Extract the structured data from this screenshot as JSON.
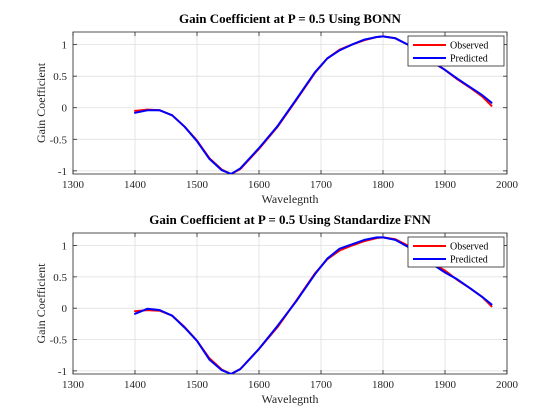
{
  "chart_data": [
    {
      "type": "line",
      "title": "Gain Coefficient at P = 0.5 Using BONN",
      "xlabel": "Wavelegnth",
      "ylabel": "Gain Coefficient",
      "xlim": [
        1300,
        2000
      ],
      "ylim": [
        -1.05,
        1.2
      ],
      "xticks": [
        1300,
        1400,
        1500,
        1600,
        1700,
        1800,
        1900,
        2000
      ],
      "yticks": [
        -1,
        -0.5,
        0,
        0.5,
        1
      ],
      "xtick_labels": [
        "1300",
        "1400",
        "1500",
        "1600",
        "1700",
        "1800",
        "1900",
        "2000"
      ],
      "ytick_labels": [
        "-1",
        "-0.5",
        "0",
        "0.5",
        "1"
      ],
      "grid": true,
      "legend_position": "top-right",
      "series": [
        {
          "name": "Observed",
          "color": "#ff0000",
          "x": [
            1400,
            1420,
            1440,
            1460,
            1480,
            1500,
            1520,
            1540,
            1555,
            1570,
            1600,
            1630,
            1660,
            1690,
            1710,
            1730,
            1750,
            1770,
            1790,
            1800,
            1820,
            1840,
            1860,
            1880,
            1900,
            1920,
            1940,
            1960,
            1975
          ],
          "y": [
            -0.05,
            -0.03,
            -0.04,
            -0.12,
            -0.3,
            -0.52,
            -0.8,
            -0.98,
            -1.05,
            -0.97,
            -0.65,
            -0.3,
            0.12,
            0.55,
            0.78,
            0.92,
            1.0,
            1.07,
            1.12,
            1.13,
            1.1,
            1.0,
            0.85,
            0.72,
            0.6,
            0.45,
            0.32,
            0.18,
            0.03
          ]
        },
        {
          "name": "Predicted",
          "color": "#0000ff",
          "x": [
            1400,
            1420,
            1440,
            1460,
            1480,
            1500,
            1520,
            1540,
            1555,
            1570,
            1600,
            1630,
            1660,
            1690,
            1710,
            1730,
            1750,
            1770,
            1790,
            1800,
            1820,
            1840,
            1860,
            1880,
            1900,
            1920,
            1940,
            1960,
            1975
          ],
          "y": [
            -0.08,
            -0.04,
            -0.04,
            -0.12,
            -0.3,
            -0.53,
            -0.81,
            -0.99,
            -1.05,
            -0.96,
            -0.64,
            -0.29,
            0.13,
            0.56,
            0.78,
            0.91,
            1.0,
            1.08,
            1.12,
            1.13,
            1.1,
            1.0,
            0.86,
            0.73,
            0.6,
            0.46,
            0.33,
            0.2,
            0.08
          ]
        }
      ]
    },
    {
      "type": "line",
      "title": "Gain Coefficient at P = 0.5 Using Standardize FNN",
      "xlabel": "Wavelegnth",
      "ylabel": "Gain Coefficient",
      "xlim": [
        1300,
        2000
      ],
      "ylim": [
        -1.05,
        1.2
      ],
      "xticks": [
        1300,
        1400,
        1500,
        1600,
        1700,
        1800,
        1900,
        2000
      ],
      "yticks": [
        -1,
        -0.5,
        0,
        0.5,
        1
      ],
      "xtick_labels": [
        "1300",
        "1400",
        "1500",
        "1600",
        "1700",
        "1800",
        "1900",
        "2000"
      ],
      "ytick_labels": [
        "-1",
        "-0.5",
        "0",
        "0.5",
        "1"
      ],
      "grid": true,
      "legend_position": "top-right",
      "series": [
        {
          "name": "Observed",
          "color": "#ff0000",
          "x": [
            1400,
            1420,
            1440,
            1460,
            1480,
            1500,
            1520,
            1540,
            1555,
            1570,
            1600,
            1630,
            1660,
            1690,
            1710,
            1730,
            1750,
            1770,
            1790,
            1800,
            1820,
            1840,
            1860,
            1880,
            1900,
            1920,
            1940,
            1960,
            1975
          ],
          "y": [
            -0.05,
            -0.03,
            -0.04,
            -0.12,
            -0.3,
            -0.52,
            -0.8,
            -0.98,
            -1.05,
            -0.97,
            -0.65,
            -0.3,
            0.12,
            0.55,
            0.78,
            0.92,
            1.0,
            1.07,
            1.12,
            1.13,
            1.1,
            1.0,
            0.85,
            0.72,
            0.6,
            0.45,
            0.32,
            0.18,
            0.03
          ]
        },
        {
          "name": "Predicted",
          "color": "#0000ff",
          "x": [
            1400,
            1420,
            1440,
            1460,
            1480,
            1500,
            1520,
            1540,
            1555,
            1570,
            1600,
            1630,
            1660,
            1690,
            1710,
            1730,
            1750,
            1770,
            1790,
            1800,
            1820,
            1840,
            1860,
            1880,
            1900,
            1920,
            1940,
            1960,
            1975
          ],
          "y": [
            -0.09,
            -0.01,
            -0.03,
            -0.12,
            -0.31,
            -0.52,
            -0.82,
            -0.99,
            -1.05,
            -0.97,
            -0.65,
            -0.28,
            0.11,
            0.54,
            0.79,
            0.95,
            1.02,
            1.09,
            1.13,
            1.13,
            1.09,
            0.98,
            0.84,
            0.7,
            0.57,
            0.46,
            0.32,
            0.18,
            0.06
          ]
        }
      ]
    }
  ]
}
